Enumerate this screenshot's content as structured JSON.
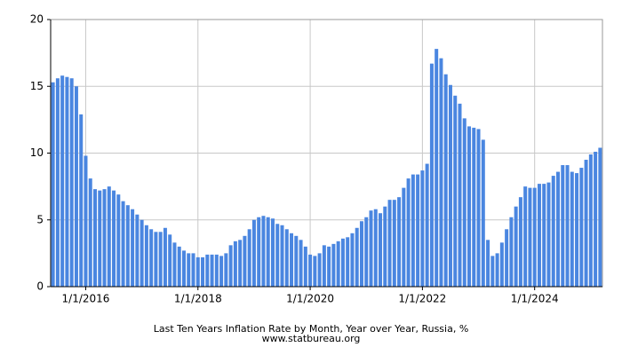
{
  "chart_data": {
    "type": "bar",
    "title": "Last Ten Years Inflation Rate by Month, Year over Year, Russia, %",
    "subtitle": "www.statbureau.org",
    "categories": [
      null,
      null,
      null,
      null,
      null,
      null,
      null,
      "1/1/2016",
      null,
      null,
      null,
      null,
      null,
      null,
      null,
      null,
      null,
      null,
      null,
      null,
      null,
      null,
      null,
      null,
      null,
      null,
      null,
      null,
      null,
      null,
      null,
      "1/1/2018",
      null,
      null,
      null,
      null,
      null,
      null,
      null,
      null,
      null,
      null,
      null,
      null,
      null,
      null,
      null,
      null,
      null,
      null,
      null,
      null,
      null,
      null,
      null,
      "1/1/2020",
      null,
      null,
      null,
      null,
      null,
      null,
      null,
      null,
      null,
      null,
      null,
      null,
      null,
      null,
      null,
      null,
      null,
      null,
      null,
      null,
      null,
      null,
      null,
      "1/1/2022",
      null,
      null,
      null,
      null,
      null,
      null,
      null,
      null,
      null,
      null,
      null,
      null,
      null,
      null,
      null,
      null,
      null,
      null,
      null,
      null,
      null,
      null,
      null,
      "1/1/2024",
      null,
      null,
      null,
      null,
      null,
      null,
      null,
      null,
      null,
      null,
      null,
      null,
      null,
      null
    ],
    "values": [
      15.3,
      15.6,
      15.8,
      15.7,
      15.6,
      15.0,
      12.9,
      9.8,
      8.1,
      7.3,
      7.2,
      7.3,
      7.5,
      7.2,
      6.9,
      6.4,
      6.1,
      5.8,
      5.4,
      5.0,
      4.6,
      4.3,
      4.1,
      4.1,
      4.4,
      3.9,
      3.3,
      3.0,
      2.7,
      2.5,
      2.5,
      2.2,
      2.2,
      2.4,
      2.4,
      2.4,
      2.3,
      2.5,
      3.1,
      3.4,
      3.5,
      3.8,
      4.3,
      5.0,
      5.2,
      5.3,
      5.2,
      5.1,
      4.7,
      4.6,
      4.3,
      4.0,
      3.8,
      3.5,
      3.0,
      2.4,
      2.3,
      2.5,
      3.1,
      3.0,
      3.2,
      3.4,
      3.6,
      3.7,
      4.0,
      4.4,
      4.9,
      5.2,
      5.7,
      5.8,
      5.5,
      6.0,
      6.5,
      6.5,
      6.7,
      7.4,
      8.1,
      8.4,
      8.4,
      8.7,
      9.2,
      16.7,
      17.8,
      17.1,
      15.9,
      15.1,
      14.3,
      13.7,
      12.6,
      12.0,
      11.9,
      11.8,
      11.0,
      3.5,
      2.3,
      2.5,
      3.3,
      4.3,
      5.2,
      6.0,
      6.7,
      7.5,
      7.4,
      7.4,
      7.7,
      7.7,
      7.8,
      8.3,
      8.6,
      9.1,
      9.1,
      8.6,
      8.5,
      8.9,
      9.5,
      9.9,
      10.1,
      10.4
    ],
    "color": "#4a86e0",
    "ylim": [
      0,
      20
    ],
    "yticks": [
      0,
      5,
      10,
      15,
      20
    ],
    "grid": true
  }
}
